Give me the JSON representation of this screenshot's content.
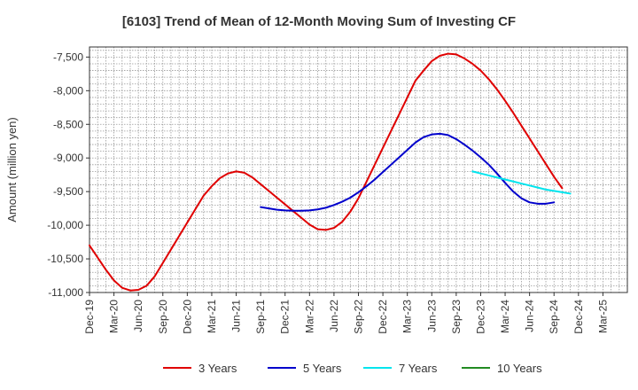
{
  "chart_data": {
    "type": "line",
    "title": "[6103]  Trend of Mean of 12-Month Moving Sum of Investing CF",
    "xlabel": "",
    "ylabel": "Amount (million yen)",
    "ylim": [
      -11000,
      -7350
    ],
    "yticks": [
      -7500,
      -8000,
      -8500,
      -9000,
      -9500,
      -10000,
      -10500,
      -11000
    ],
    "ytick_labels": [
      "-7,500",
      "-8,000",
      "-8,500",
      "-9,000",
      "-9,500",
      "-10,000",
      "-10,500",
      "-11,000"
    ],
    "x_start": "Dec-19",
    "x_count": 67,
    "xtick_labels": [
      "Dec-19",
      "Mar-20",
      "Jun-20",
      "Sep-20",
      "Dec-20",
      "Mar-21",
      "Jun-21",
      "Sep-21",
      "Dec-21",
      "Mar-22",
      "Jun-22",
      "Sep-22",
      "Dec-22",
      "Mar-23",
      "Jun-23",
      "Sep-23",
      "Dec-23",
      "Mar-24",
      "Jun-24",
      "Sep-24",
      "Dec-24",
      "Mar-25"
    ],
    "grid": true,
    "legend_position": "bottom",
    "series": [
      {
        "name": "3 Years",
        "color": "#e00000",
        "start_index": 0,
        "values": [
          -10300,
          -10480,
          -10660,
          -10820,
          -10930,
          -10970,
          -10960,
          -10900,
          -10760,
          -10560,
          -10360,
          -10160,
          -9960,
          -9760,
          -9560,
          -9420,
          -9300,
          -9230,
          -9200,
          -9220,
          -9290,
          -9390,
          -9490,
          -9590,
          -9690,
          -9790,
          -9890,
          -9990,
          -10060,
          -10070,
          -10040,
          -9950,
          -9800,
          -9600,
          -9350,
          -9100,
          -8850,
          -8600,
          -8350,
          -8100,
          -7850,
          -7700,
          -7560,
          -7480,
          -7450,
          -7460,
          -7520,
          -7600,
          -7700,
          -7830,
          -7980,
          -8150,
          -8330,
          -8520,
          -8710,
          -8900,
          -9090,
          -9280,
          -9450
        ]
      },
      {
        "name": "5 Years",
        "color": "#0000cc",
        "start_index": 21,
        "values": [
          -9730,
          -9750,
          -9770,
          -9780,
          -9785,
          -9785,
          -9780,
          -9765,
          -9740,
          -9700,
          -9650,
          -9590,
          -9510,
          -9420,
          -9320,
          -9210,
          -9100,
          -8990,
          -8880,
          -8770,
          -8690,
          -8650,
          -8640,
          -8660,
          -8720,
          -8800,
          -8890,
          -8990,
          -9100,
          -9230,
          -9370,
          -9500,
          -9600,
          -9660,
          -9680,
          -9680,
          -9660
        ]
      },
      {
        "name": "7 Years",
        "color": "#00e5ee",
        "start_index": 47,
        "values": [
          -9200,
          -9230,
          -9260,
          -9290,
          -9320,
          -9350,
          -9380,
          -9410,
          -9440,
          -9470,
          -9490,
          -9510,
          -9530
        ]
      },
      {
        "name": "10 Years",
        "color": "#228b22",
        "start_index": 0,
        "values": []
      }
    ]
  }
}
